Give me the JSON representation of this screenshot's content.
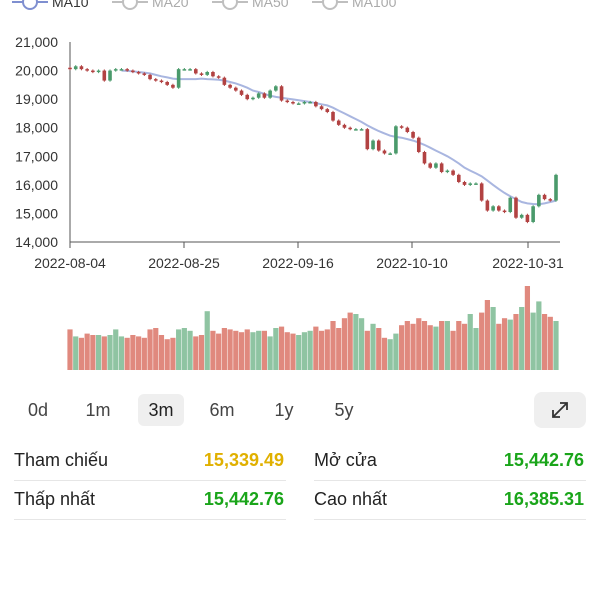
{
  "legend": [
    {
      "label": "MA10",
      "color": "#7f8fd0",
      "active": true
    },
    {
      "label": "MA20",
      "color": "#bfbfbf",
      "active": false
    },
    {
      "label": "MA50",
      "color": "#bfbfbf",
      "active": false
    },
    {
      "label": "MA100",
      "color": "#bfbfbf",
      "active": false
    }
  ],
  "range_buttons": [
    {
      "label": "0d",
      "active": false
    },
    {
      "label": "1m",
      "active": false
    },
    {
      "label": "3m",
      "active": true
    },
    {
      "label": "6m",
      "active": false
    },
    {
      "label": "1y",
      "active": false
    },
    {
      "label": "5y",
      "active": false
    }
  ],
  "expand_icon": "expand-diagonal-icon",
  "stats": {
    "reference": {
      "label": "Tham chiếu",
      "value": "15,339.49",
      "color": "#e0b000"
    },
    "open": {
      "label": "Mở cửa",
      "value": "15,442.76",
      "color": "#1aa51a"
    },
    "low": {
      "label": "Thấp nhất",
      "value": "15,442.76",
      "color": "#1aa51a"
    },
    "high": {
      "label": "Cao nhất",
      "value": "16,385.31",
      "color": "#1aa51a"
    }
  },
  "colors": {
    "up": "#4a9a6b",
    "down": "#b24242",
    "vol_up": "#8fc4a2",
    "vol_down": "#e0897e",
    "ma": "#a9b6e0"
  },
  "chart_data": {
    "type": "candlestick",
    "y_ticks": [
      "21,000",
      "20,000",
      "19,000",
      "18,000",
      "17,000",
      "16,000",
      "15,000",
      "14,000"
    ],
    "y_range": [
      14000,
      21000
    ],
    "x_ticks": [
      "2022-08-04",
      "2022-08-25",
      "2022-09-16",
      "2022-10-10",
      "2022-10-31"
    ],
    "close": [
      20050,
      20150,
      20050,
      20000,
      19950,
      20000,
      19650,
      20000,
      20050,
      20050,
      20000,
      19950,
      19900,
      19850,
      19700,
      19650,
      19600,
      19500,
      19400,
      20050,
      20050,
      20050,
      19900,
      19850,
      19950,
      19800,
      19750,
      19500,
      19400,
      19300,
      19150,
      19000,
      19050,
      19200,
      19050,
      19300,
      19450,
      18950,
      18900,
      18850,
      18850,
      18900,
      18900,
      18750,
      18650,
      18550,
      18250,
      18100,
      18000,
      17950,
      17950,
      17950,
      17250,
      17550,
      17200,
      17100,
      17100,
      18050,
      18000,
      17850,
      17650,
      17150,
      16750,
      16600,
      16750,
      16450,
      16500,
      16350,
      16100,
      16000,
      16050,
      16050,
      15450,
      15100,
      15250,
      15100,
      15050,
      15550,
      14850,
      14950,
      14700,
      15250,
      15650,
      15500,
      15450,
      16350
    ],
    "ma10": [
      null,
      null,
      null,
      null,
      null,
      null,
      null,
      null,
      null,
      20000,
      19990,
      19970,
      19950,
      19930,
      19900,
      19850,
      19800,
      19760,
      19720,
      19700,
      19700,
      19700,
      19700,
      19720,
      19700,
      19690,
      19680,
      19650,
      19600,
      19550,
      19480,
      19400,
      19300,
      19250,
      19180,
      19120,
      19080,
      19050,
      19020,
      18990,
      18960,
      18930,
      18900,
      18860,
      18820,
      18780,
      18700,
      18600,
      18500,
      18400,
      18300,
      18200,
      18080,
      17980,
      17880,
      17800,
      17720,
      17680,
      17650,
      17600,
      17550,
      17480,
      17400,
      17300,
      17200,
      17100,
      17000,
      16880,
      16750,
      16600,
      16500,
      16400,
      16300,
      16150,
      16000,
      15850,
      15720,
      15600,
      15500,
      15400,
      15350,
      15330,
      15320,
      15350,
      15400,
      15450
    ],
    "volume": [
      58,
      48,
      46,
      52,
      50,
      50,
      48,
      50,
      58,
      48,
      46,
      50,
      48,
      46,
      58,
      60,
      50,
      44,
      46,
      58,
      60,
      56,
      48,
      50,
      84,
      56,
      52,
      60,
      58,
      56,
      54,
      58,
      54,
      56,
      56,
      48,
      60,
      62,
      54,
      52,
      50,
      54,
      56,
      62,
      56,
      58,
      70,
      60,
      74,
      82,
      80,
      74,
      56,
      66,
      60,
      46,
      44,
      52,
      64,
      70,
      66,
      74,
      70,
      64,
      62,
      70,
      70,
      56,
      70,
      66,
      80,
      60,
      82,
      100,
      90,
      66,
      74,
      72,
      80,
      90,
      120,
      82,
      98,
      80,
      76,
      70
    ]
  }
}
